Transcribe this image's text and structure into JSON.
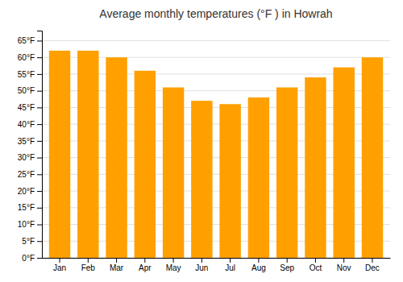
{
  "chart_data": {
    "type": "bar",
    "title": "Average monthly temperatures (°F ) in Howrah",
    "categories": [
      "Jan",
      "Feb",
      "Mar",
      "Apr",
      "May",
      "Jun",
      "Jul",
      "Aug",
      "Sep",
      "Oct",
      "Nov",
      "Dec"
    ],
    "values": [
      62,
      62,
      60,
      56,
      51,
      47,
      46,
      48,
      51,
      54,
      57,
      60
    ],
    "color": "#FFA000",
    "ylim": [
      0,
      68
    ],
    "yticks": [
      {
        "value": 0,
        "label": "0°F"
      },
      {
        "value": 5,
        "label": "5°F"
      },
      {
        "value": 10,
        "label": "10°F"
      },
      {
        "value": 15,
        "label": "15°F"
      },
      {
        "value": 20,
        "label": "20°F"
      },
      {
        "value": 25,
        "label": "25°F"
      },
      {
        "value": 30,
        "label": "30°F"
      },
      {
        "value": 35,
        "label": "35°F"
      },
      {
        "value": 40,
        "label": "40°F"
      },
      {
        "value": 45,
        "label": "45°F"
      },
      {
        "value": 50,
        "label": "50°F"
      },
      {
        "value": 55,
        "label": "55°F"
      },
      {
        "value": 60,
        "label": "60°F"
      },
      {
        "value": 65,
        "label": "65°F"
      }
    ],
    "grid": true
  }
}
